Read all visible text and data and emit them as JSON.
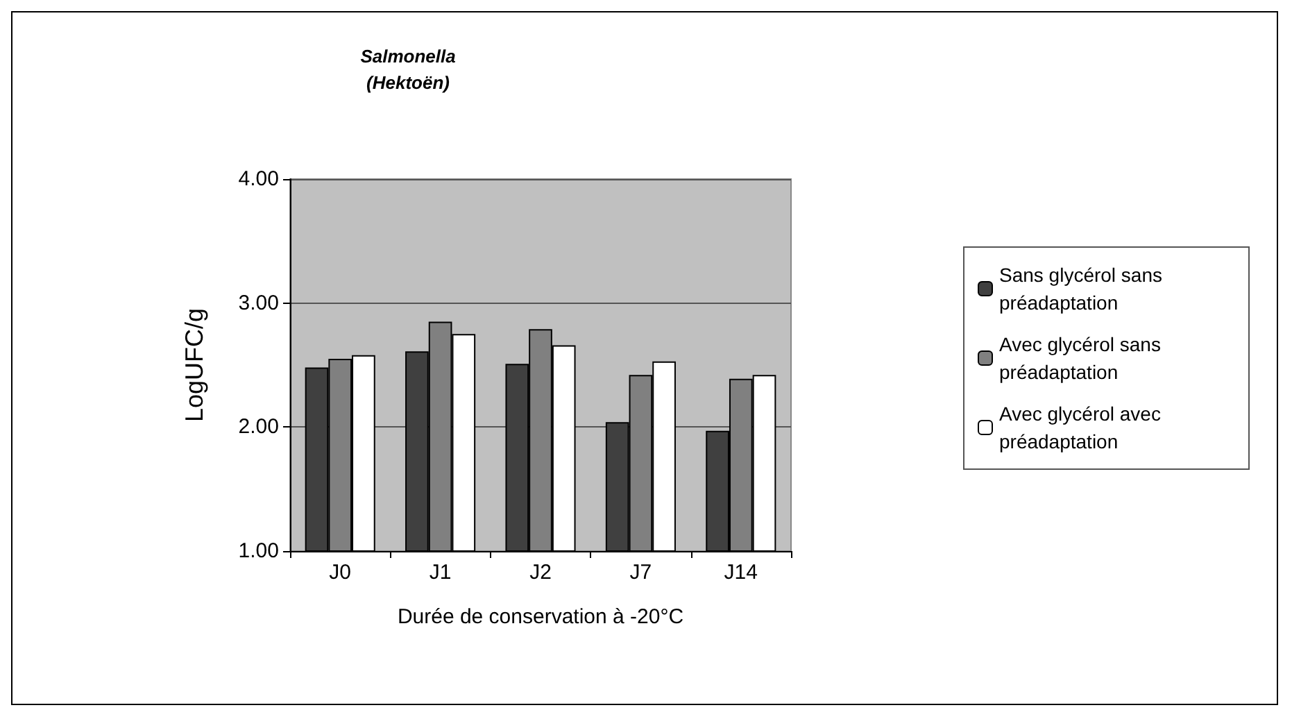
{
  "chart_data": {
    "type": "bar",
    "title": "Salmonella",
    "subtitle": "(Hektoën)",
    "xlabel": "Durée de conservation à -20°C",
    "ylabel": "LogUFC/g",
    "categories": [
      "J0",
      "J1",
      "J2",
      "J7",
      "J14"
    ],
    "series": [
      {
        "name": "Sans glycérol sans préadaptation",
        "color": "#404040",
        "values": [
          2.48,
          2.61,
          2.51,
          2.04,
          1.97
        ]
      },
      {
        "name": "Avec glycérol sans préadaptation",
        "color": "#808080",
        "values": [
          2.55,
          2.85,
          2.79,
          2.42,
          2.39
        ]
      },
      {
        "name": "Avec glycérol avec préadaptation",
        "color": "#ffffff",
        "values": [
          2.58,
          2.75,
          2.66,
          2.53,
          2.42
        ]
      }
    ],
    "ylim": [
      1,
      4
    ],
    "yticks": [
      {
        "value": 1,
        "label": "1.00"
      },
      {
        "value": 2,
        "label": "2.00"
      },
      {
        "value": 3,
        "label": "3.00"
      },
      {
        "value": 4,
        "label": "4.00"
      }
    ],
    "grid": "y",
    "legend": "right"
  }
}
